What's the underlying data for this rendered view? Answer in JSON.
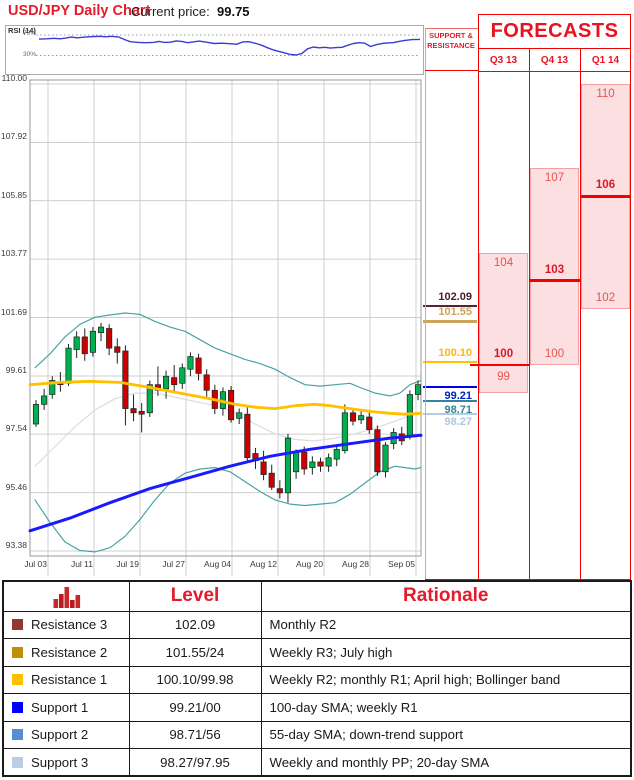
{
  "colors": {
    "accent_red": "#e31b2c",
    "border_red": "#f50000",
    "forecast_fill": "#fbdfe1",
    "forecast_border": "#f2a0a4",
    "candle_up": "#00b050",
    "candle_down": "#cc0000"
  },
  "header": {
    "title": "USD/JPY Daily Chart",
    "price_label": "Current price:",
    "price_value": "99.75"
  },
  "rsi_panel": {
    "label": "RSI (14)",
    "upper_label": "70%",
    "lower_label": "30%"
  },
  "sr_panel": {
    "title": "SUPPORT & RESISTANCE"
  },
  "forecast_panel": {
    "title": "FORECASTS"
  },
  "chart_data": {
    "type": "candlestick",
    "title": "USD/JPY Daily Chart",
    "current_price": 99.75,
    "ylim": [
      93.2,
      110.2
    ],
    "grid": true,
    "y_ticks": [
      "110.00",
      "107.92",
      "105.85",
      "103.77",
      "101.69",
      "99.61",
      "97.54",
      "95.46",
      "93.38"
    ],
    "x_ticks": [
      "Jul 03",
      "Jul 11",
      "Jul 19",
      "Jul 27",
      "Aug 04",
      "Aug 12",
      "Aug 20",
      "Aug 28",
      "Sep 05"
    ],
    "ohlc": [
      [
        97.9,
        98.75,
        97.8,
        98.6
      ],
      [
        98.6,
        99.15,
        98.4,
        98.9
      ],
      [
        98.95,
        99.6,
        98.8,
        99.45
      ],
      [
        99.4,
        99.75,
        99.05,
        99.3
      ],
      [
        99.35,
        100.75,
        99.25,
        100.6
      ],
      [
        100.55,
        101.2,
        100.25,
        101.0
      ],
      [
        101.0,
        101.3,
        100.15,
        100.4
      ],
      [
        100.45,
        101.35,
        100.3,
        101.2
      ],
      [
        101.15,
        101.5,
        100.85,
        101.35
      ],
      [
        101.3,
        101.45,
        100.35,
        100.6
      ],
      [
        100.65,
        100.95,
        100.05,
        100.45
      ],
      [
        100.5,
        100.7,
        97.85,
        98.45
      ],
      [
        98.45,
        98.95,
        98.0,
        98.3
      ],
      [
        98.35,
        98.65,
        97.6,
        98.25
      ],
      [
        98.3,
        99.45,
        98.15,
        99.3
      ],
      [
        99.3,
        99.95,
        98.9,
        99.1
      ],
      [
        99.15,
        99.8,
        98.8,
        99.6
      ],
      [
        99.55,
        100.0,
        99.05,
        99.3
      ],
      [
        99.35,
        100.05,
        99.15,
        99.9
      ],
      [
        99.85,
        100.45,
        99.6,
        100.3
      ],
      [
        100.25,
        100.4,
        99.45,
        99.7
      ],
      [
        99.65,
        99.85,
        98.85,
        99.1
      ],
      [
        99.1,
        99.3,
        98.25,
        98.45
      ],
      [
        98.45,
        99.2,
        98.2,
        99.05
      ],
      [
        99.1,
        99.25,
        97.95,
        98.05
      ],
      [
        98.1,
        98.45,
        97.9,
        98.3
      ],
      [
        98.25,
        98.5,
        96.55,
        96.7
      ],
      [
        96.85,
        97.05,
        96.3,
        96.6
      ],
      [
        96.55,
        96.95,
        95.9,
        96.1
      ],
      [
        96.15,
        96.45,
        95.55,
        95.65
      ],
      [
        95.6,
        95.9,
        95.25,
        95.45
      ],
      [
        95.45,
        97.55,
        95.1,
        97.4
      ],
      [
        96.2,
        97.0,
        95.95,
        96.9
      ],
      [
        96.9,
        97.1,
        96.1,
        96.3
      ],
      [
        96.35,
        96.75,
        96.1,
        96.55
      ],
      [
        96.55,
        96.7,
        96.2,
        96.4
      ],
      [
        96.4,
        96.85,
        96.2,
        96.7
      ],
      [
        96.65,
        97.1,
        96.4,
        97.0
      ],
      [
        96.95,
        98.6,
        96.85,
        98.3
      ],
      [
        98.3,
        98.45,
        97.85,
        98.0
      ],
      [
        98.05,
        98.35,
        97.9,
        98.2
      ],
      [
        98.15,
        98.3,
        97.55,
        97.7
      ],
      [
        97.7,
        97.85,
        96.05,
        96.2
      ],
      [
        96.2,
        97.25,
        96.0,
        97.15
      ],
      [
        97.2,
        97.75,
        97.0,
        97.6
      ],
      [
        97.55,
        97.8,
        97.15,
        97.3
      ],
      [
        97.45,
        99.1,
        97.35,
        98.95
      ],
      [
        98.95,
        99.45,
        98.75,
        99.3
      ]
    ],
    "overlays": [
      {
        "name": "sma-20",
        "color": "#dcdcdc",
        "width": 1.2,
        "points": [
          [
            35,
            96.4
          ],
          [
            55,
            97.1
          ],
          [
            75,
            97.8
          ],
          [
            95,
            98.4
          ],
          [
            115,
            98.8
          ],
          [
            135,
            99.0
          ],
          [
            155,
            99.0
          ],
          [
            175,
            98.85
          ],
          [
            195,
            98.7
          ],
          [
            215,
            98.55
          ],
          [
            235,
            98.3
          ],
          [
            255,
            97.9
          ],
          [
            275,
            97.55
          ],
          [
            295,
            97.35
          ],
          [
            315,
            97.3
          ],
          [
            335,
            97.4
          ],
          [
            355,
            97.55
          ],
          [
            375,
            97.75
          ],
          [
            395,
            98.0
          ],
          [
            410,
            98.2
          ],
          [
            421,
            98.3
          ]
        ]
      },
      {
        "name": "bollinger-upper",
        "color": "#4aa3a3",
        "width": 1.2,
        "points": [
          [
            35,
            99.9
          ],
          [
            50,
            100.4
          ],
          [
            65,
            101.0
          ],
          [
            80,
            101.45
          ],
          [
            95,
            101.7
          ],
          [
            110,
            101.78
          ],
          [
            125,
            101.85
          ],
          [
            140,
            101.8
          ],
          [
            155,
            101.55
          ],
          [
            170,
            101.35
          ],
          [
            185,
            101.2
          ],
          [
            200,
            100.9
          ],
          [
            215,
            100.6
          ],
          [
            230,
            100.4
          ],
          [
            245,
            100.2
          ],
          [
            260,
            100.05
          ],
          [
            275,
            99.85
          ],
          [
            290,
            99.55
          ],
          [
            305,
            99.3
          ],
          [
            320,
            99.25
          ],
          [
            335,
            99.3
          ],
          [
            350,
            99.35
          ],
          [
            360,
            99.2
          ],
          [
            375,
            99.0
          ],
          [
            390,
            98.9
          ],
          [
            400,
            99.0
          ],
          [
            410,
            99.3
          ],
          [
            421,
            99.45
          ]
        ]
      },
      {
        "name": "bollinger-lower",
        "color": "#4aa3a3",
        "width": 1.2,
        "points": [
          [
            35,
            95.2
          ],
          [
            50,
            94.4
          ],
          [
            65,
            93.7
          ],
          [
            80,
            93.4
          ],
          [
            95,
            93.35
          ],
          [
            110,
            93.5
          ],
          [
            125,
            93.9
          ],
          [
            140,
            94.5
          ],
          [
            155,
            95.2
          ],
          [
            170,
            95.8
          ],
          [
            185,
            96.15
          ],
          [
            200,
            96.3
          ],
          [
            215,
            96.35
          ],
          [
            230,
            96.2
          ],
          [
            245,
            95.85
          ],
          [
            260,
            95.5
          ],
          [
            275,
            95.2
          ],
          [
            290,
            95.05
          ],
          [
            305,
            95.0
          ],
          [
            320,
            95.05
          ],
          [
            335,
            95.1
          ],
          [
            350,
            95.4
          ],
          [
            365,
            95.8
          ],
          [
            380,
            96.2
          ],
          [
            395,
            96.4
          ],
          [
            405,
            96.35
          ],
          [
            415,
            96.3
          ],
          [
            421,
            96.35
          ]
        ]
      },
      {
        "name": "sma-55",
        "color": "#ffc000",
        "width": 2.8,
        "points": [
          [
            30,
            99.3
          ],
          [
            60,
            99.38
          ],
          [
            90,
            99.42
          ],
          [
            120,
            99.38
          ],
          [
            150,
            99.2
          ],
          [
            180,
            99.0
          ],
          [
            210,
            98.8
          ],
          [
            235,
            98.6
          ],
          [
            255,
            98.5
          ],
          [
            275,
            98.45
          ],
          [
            295,
            98.55
          ],
          [
            315,
            98.6
          ],
          [
            330,
            98.55
          ],
          [
            350,
            98.45
          ],
          [
            370,
            98.35
          ],
          [
            390,
            98.28
          ],
          [
            405,
            98.25
          ],
          [
            421,
            98.28
          ]
        ]
      },
      {
        "name": "sma-100",
        "color": "#1a1aff",
        "width": 3,
        "points": [
          [
            30,
            94.1
          ],
          [
            70,
            94.55
          ],
          [
            110,
            95.1
          ],
          [
            150,
            95.6
          ],
          [
            190,
            96.0
          ],
          [
            230,
            96.4
          ],
          [
            270,
            96.75
          ],
          [
            310,
            97.0
          ],
          [
            350,
            97.2
          ],
          [
            390,
            97.4
          ],
          [
            421,
            97.5
          ]
        ]
      }
    ],
    "rsi": {
      "label": "RSI (14)",
      "upper": 70,
      "lower": 30,
      "points": [
        [
          0.0,
          62
        ],
        [
          0.02,
          62.5
        ],
        [
          0.04,
          63.5
        ],
        [
          0.055,
          62.5
        ],
        [
          0.07,
          64
        ],
        [
          0.085,
          66
        ],
        [
          0.1,
          64.5
        ],
        [
          0.115,
          65.5
        ],
        [
          0.13,
          66.5
        ],
        [
          0.145,
          67
        ],
        [
          0.16,
          67.5
        ],
        [
          0.175,
          66.5
        ],
        [
          0.19,
          67.5
        ],
        [
          0.21,
          66
        ],
        [
          0.225,
          61
        ],
        [
          0.24,
          57
        ],
        [
          0.26,
          55.5
        ],
        [
          0.28,
          55
        ],
        [
          0.3,
          55.5
        ],
        [
          0.315,
          57.5
        ],
        [
          0.33,
          55.5
        ],
        [
          0.345,
          56
        ],
        [
          0.36,
          58.5
        ],
        [
          0.375,
          57.5
        ],
        [
          0.39,
          55
        ],
        [
          0.405,
          56.5
        ],
        [
          0.42,
          58
        ],
        [
          0.44,
          56
        ],
        [
          0.46,
          53.5
        ],
        [
          0.48,
          54
        ],
        [
          0.5,
          53
        ],
        [
          0.52,
          52
        ],
        [
          0.535,
          56.5
        ],
        [
          0.55,
          57
        ],
        [
          0.57,
          53.5
        ],
        [
          0.585,
          50
        ],
        [
          0.6,
          45
        ],
        [
          0.615,
          41
        ],
        [
          0.63,
          38
        ],
        [
          0.645,
          35
        ],
        [
          0.66,
          32
        ],
        [
          0.675,
          31
        ],
        [
          0.69,
          34
        ],
        [
          0.705,
          43
        ],
        [
          0.72,
          46.5
        ],
        [
          0.735,
          45
        ],
        [
          0.75,
          46
        ],
        [
          0.765,
          44.5
        ],
        [
          0.78,
          45.5
        ],
        [
          0.795,
          46
        ],
        [
          0.81,
          50
        ],
        [
          0.825,
          53.5
        ],
        [
          0.84,
          55
        ],
        [
          0.855,
          54
        ],
        [
          0.87,
          47.5
        ],
        [
          0.885,
          51
        ],
        [
          0.9,
          53.5
        ],
        [
          0.915,
          54.5
        ],
        [
          0.93,
          55
        ],
        [
          0.945,
          57.5
        ],
        [
          0.96,
          59.5
        ],
        [
          0.98,
          61
        ],
        [
          1.0,
          61.5
        ]
      ]
    },
    "sr_levels": [
      {
        "name": "Resistance 3",
        "label": "102.09",
        "value": 102.09,
        "color": "#5a2230",
        "text_color": "#4a1b28",
        "label_above": true
      },
      {
        "name": "Resistance 2",
        "label": "101.55",
        "value": 101.55,
        "color": "#c9a45a",
        "text_color": "#c9a45a",
        "label_above": true
      },
      {
        "name": "Resistance 1",
        "label": "100.10",
        "value": 100.1,
        "color": "#ffc000",
        "text_color": "#ffb900",
        "label_above": true
      },
      {
        "name": "Support 1",
        "label": "99.21",
        "value": 99.21,
        "color": "#0000f0",
        "text_color": "#0023c4",
        "label_above": false
      },
      {
        "name": "Support 2",
        "label": "98.71",
        "value": 98.71,
        "color": "#31849b",
        "text_color": "#31849b",
        "label_above": false
      },
      {
        "name": "Support 3",
        "label": "98.27",
        "value": 98.27,
        "color": "#b5cbe1",
        "text_color": "#aec6df",
        "label_above": false
      }
    ],
    "forecasts": {
      "title": "FORECASTS",
      "columns": [
        {
          "label": "Q3 13",
          "high": 104,
          "low": 99,
          "central": 100
        },
        {
          "label": "Q4 13",
          "high": 107,
          "low": 100,
          "central": 103
        },
        {
          "label": "Q1 14",
          "high": 110,
          "low": 102,
          "central": 106
        }
      ]
    }
  },
  "table": {
    "icon": "bar-chart-icon",
    "headers": [
      "Level",
      "Rationale"
    ],
    "rows": [
      {
        "name": "Resistance 3",
        "color": "#963634",
        "level": "102.09",
        "rationale": "Monthly R2"
      },
      {
        "name": "Resistance 2",
        "color": "#bf9000",
        "level": "101.55/24",
        "rationale": "Weekly R3; July high"
      },
      {
        "name": "Resistance 1",
        "color": "#ffc000",
        "level": "100.10/99.98",
        "rationale": "Weekly R2; monthly R1; April high; Bollinger band"
      },
      {
        "name": "Support 1",
        "color": "#0000ff",
        "level": "99.21/00",
        "rationale": "100-day SMA; weekly R1"
      },
      {
        "name": "Support 2",
        "color": "#558ed5",
        "level": "98.71/56",
        "rationale": "55-day SMA; down-trend support"
      },
      {
        "name": "Support 3",
        "color": "#b9cde5",
        "level": "98.27/97.95",
        "rationale": "Weekly and monthly PP; 20-day SMA"
      }
    ]
  }
}
